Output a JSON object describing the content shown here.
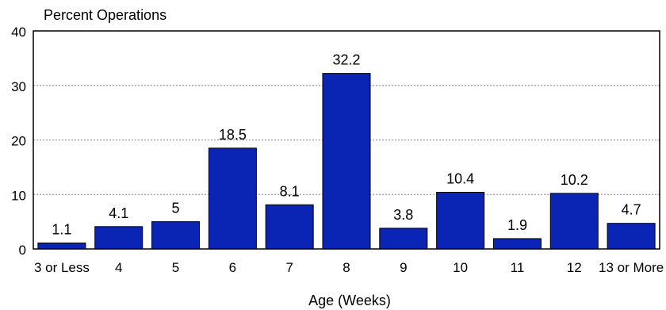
{
  "chart_data": {
    "type": "bar",
    "ylabel": "Percent Operations",
    "xlabel": "Age (Weeks)",
    "categories": [
      "3 or Less",
      "4",
      "5",
      "6",
      "7",
      "8",
      "9",
      "10",
      "11",
      "12",
      "13 or More"
    ],
    "values": [
      1.1,
      4.1,
      5,
      18.5,
      8.1,
      32.2,
      3.8,
      10.4,
      1.9,
      10.2,
      4.7
    ],
    "value_labels": [
      "1.1",
      "4.1",
      "5",
      "18.5",
      "8.1",
      "32.2",
      "3.8",
      "10.4",
      "1.9",
      "10.2",
      "4.7"
    ],
    "ylim": [
      0,
      40
    ],
    "yticks": [
      "0",
      "10",
      "20",
      "30",
      "40"
    ],
    "grid": true,
    "colors": {
      "bar": "#0a24b4",
      "bar_edge": "#000000",
      "grid": "#8a8a8a"
    }
  }
}
